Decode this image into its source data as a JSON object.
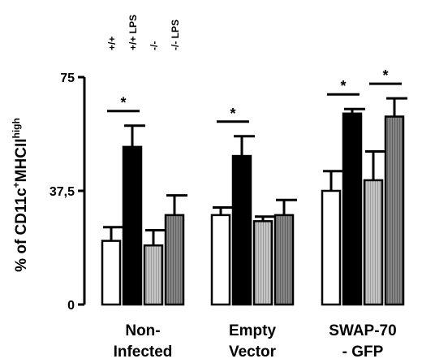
{
  "chart_data": {
    "type": "bar",
    "title": "",
    "ylabel_parts": [
      "% of CD11c",
      "+",
      "MHCII",
      "high"
    ],
    "ylim": [
      0,
      75
    ],
    "yticks": [
      {
        "value": 0,
        "label": "0"
      },
      {
        "value": 37.5,
        "label": "37,5"
      },
      {
        "value": 75,
        "label": "75"
      }
    ],
    "categories": [
      {
        "lines": [
          "Non-",
          "Infected"
        ]
      },
      {
        "lines": [
          "Empty",
          "Vector"
        ]
      },
      {
        "lines": [
          "SWAP-70",
          "- GFP"
        ]
      }
    ],
    "series": [
      {
        "name": "+/+",
        "fill": "#ffffff",
        "pattern": "none",
        "values": [
          21,
          29.5,
          37.5
        ],
        "errors": [
          4.5,
          2.5,
          6.5
        ]
      },
      {
        "name": "+/+ LPS",
        "fill": "#000000",
        "pattern": "none",
        "values": [
          52,
          49,
          63
        ],
        "errors": [
          7,
          6.5,
          1.5
        ]
      },
      {
        "name": "-/-",
        "fill": "#bdbdbd",
        "pattern": "vlines-light",
        "values": [
          19.5,
          27.5,
          41
        ],
        "errors": [
          5,
          1.5,
          9.5
        ]
      },
      {
        "name": "-/- LPS",
        "fill": "#7c7c7c",
        "pattern": "vlines-dark",
        "values": [
          29.5,
          29.5,
          62
        ],
        "errors": [
          6.5,
          5,
          6
        ]
      }
    ],
    "significance": [
      {
        "category": 0,
        "from_series": 0,
        "to_series": 1,
        "label": "*"
      },
      {
        "category": 1,
        "from_series": 0,
        "to_series": 1,
        "label": "*"
      },
      {
        "category": 2,
        "from_series": 0,
        "to_series": 1,
        "label": "*"
      },
      {
        "category": 2,
        "from_series": 2,
        "to_series": 3,
        "label": "*"
      }
    ],
    "legend_placement": "top-left"
  }
}
